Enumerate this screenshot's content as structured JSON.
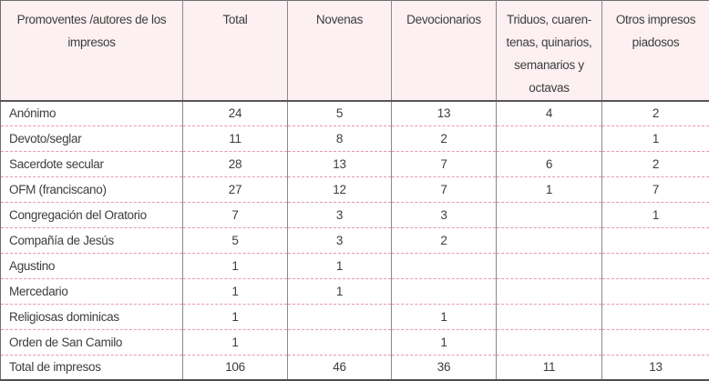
{
  "chart_data": {
    "type": "table",
    "title": "",
    "columns": [
      "Promoventes /autores de los impresos",
      "Total",
      "Novenas",
      "Devocionarios",
      "Triduos, cuarentenas, quinarios, semanarios y octavas",
      "Otros impresos piadosos"
    ],
    "header_display": [
      "Promoventes /autores de los\nimpresos",
      "Total",
      "Novenas",
      "Devocionarios",
      "Triduos, cuaren-\ntenas, quinarios,\nsemanarios y\noctavas",
      "Otros impresos\npiadosos"
    ],
    "rows": [
      {
        "label": "Anónimo",
        "values": [
          24,
          5,
          13,
          4,
          2
        ]
      },
      {
        "label": "Devoto/seglar",
        "values": [
          11,
          8,
          2,
          null,
          1
        ]
      },
      {
        "label": "Sacerdote secular",
        "values": [
          28,
          13,
          7,
          6,
          2
        ]
      },
      {
        "label": "OFM (franciscano)",
        "values": [
          27,
          12,
          7,
          1,
          7
        ]
      },
      {
        "label": "Congregación del Oratorio",
        "values": [
          7,
          3,
          3,
          null,
          1
        ]
      },
      {
        "label": "Compañía de Jesús",
        "values": [
          5,
          3,
          2,
          null,
          null
        ]
      },
      {
        "label": "Agustino",
        "values": [
          1,
          1,
          null,
          null,
          null
        ]
      },
      {
        "label": "Mercedario",
        "values": [
          1,
          1,
          null,
          null,
          null
        ]
      },
      {
        "label": "Religiosas dominicas",
        "values": [
          1,
          null,
          1,
          null,
          null
        ]
      },
      {
        "label": "Orden de San Camilo",
        "values": [
          1,
          null,
          1,
          null,
          null
        ]
      },
      {
        "label": "Total de impresos",
        "values": [
          106,
          46,
          36,
          11,
          13
        ]
      }
    ]
  },
  "colors": {
    "header_background": "#fcf0f2",
    "dashed_row_divider": "#e59aab",
    "dark_border": "#4f4f4f",
    "column_divider": "#8a8a8a",
    "text": "#3d3d3d"
  }
}
